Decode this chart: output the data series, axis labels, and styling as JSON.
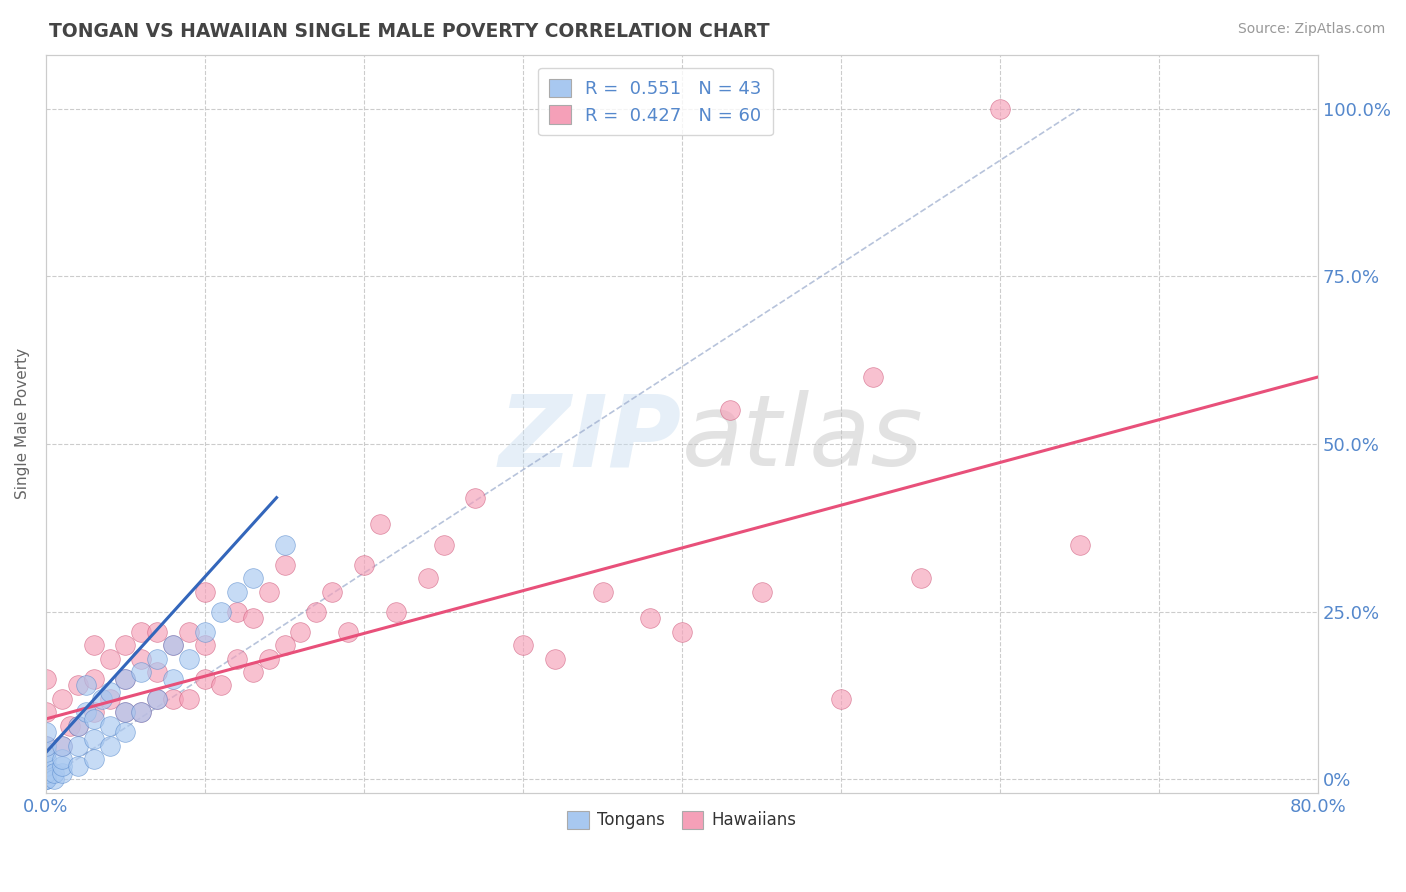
{
  "title": "TONGAN VS HAWAIIAN SINGLE MALE POVERTY CORRELATION CHART",
  "source": "Source: ZipAtlas.com",
  "ylabel": "Single Male Poverty",
  "xlim": [
    0.0,
    0.8
  ],
  "ylim": [
    -0.02,
    1.08
  ],
  "tongan_R": 0.551,
  "tongan_N": 43,
  "hawaiian_R": 0.427,
  "hawaiian_N": 60,
  "tongan_color": "#a8c8f0",
  "tongan_edge": "#5588cc",
  "hawaiian_color": "#f5a0b8",
  "hawaiian_edge": "#cc5577",
  "background_color": "#ffffff",
  "grid_color": "#cccccc",
  "title_color": "#444444",
  "tongan_scatter_x": [
    0.0,
    0.0,
    0.0,
    0.0,
    0.0,
    0.0,
    0.0,
    0.0,
    0.0,
    0.0,
    0.005,
    0.005,
    0.01,
    0.01,
    0.01,
    0.01,
    0.02,
    0.02,
    0.02,
    0.025,
    0.025,
    0.03,
    0.03,
    0.03,
    0.035,
    0.04,
    0.04,
    0.04,
    0.05,
    0.05,
    0.05,
    0.06,
    0.06,
    0.07,
    0.07,
    0.08,
    0.08,
    0.09,
    0.1,
    0.11,
    0.12,
    0.13,
    0.15
  ],
  "tongan_scatter_y": [
    0.0,
    0.0,
    0.0,
    0.01,
    0.01,
    0.02,
    0.03,
    0.04,
    0.05,
    0.07,
    0.0,
    0.01,
    0.01,
    0.02,
    0.03,
    0.05,
    0.02,
    0.05,
    0.08,
    0.1,
    0.14,
    0.03,
    0.06,
    0.09,
    0.12,
    0.05,
    0.08,
    0.13,
    0.07,
    0.1,
    0.15,
    0.1,
    0.16,
    0.12,
    0.18,
    0.15,
    0.2,
    0.18,
    0.22,
    0.25,
    0.28,
    0.3,
    0.35
  ],
  "hawaiian_scatter_x": [
    0.0,
    0.0,
    0.0,
    0.01,
    0.01,
    0.015,
    0.02,
    0.02,
    0.03,
    0.03,
    0.03,
    0.04,
    0.04,
    0.05,
    0.05,
    0.05,
    0.06,
    0.06,
    0.06,
    0.07,
    0.07,
    0.07,
    0.08,
    0.08,
    0.09,
    0.09,
    0.1,
    0.1,
    0.1,
    0.11,
    0.12,
    0.12,
    0.13,
    0.13,
    0.14,
    0.14,
    0.15,
    0.15,
    0.16,
    0.17,
    0.18,
    0.19,
    0.2,
    0.21,
    0.22,
    0.24,
    0.25,
    0.27,
    0.3,
    0.32,
    0.35,
    0.38,
    0.4,
    0.43,
    0.45,
    0.5,
    0.52,
    0.55,
    0.6,
    0.65
  ],
  "hawaiian_scatter_y": [
    0.05,
    0.1,
    0.15,
    0.05,
    0.12,
    0.08,
    0.08,
    0.14,
    0.1,
    0.15,
    0.2,
    0.12,
    0.18,
    0.1,
    0.15,
    0.2,
    0.1,
    0.18,
    0.22,
    0.12,
    0.16,
    0.22,
    0.12,
    0.2,
    0.12,
    0.22,
    0.15,
    0.2,
    0.28,
    0.14,
    0.18,
    0.25,
    0.16,
    0.24,
    0.18,
    0.28,
    0.2,
    0.32,
    0.22,
    0.25,
    0.28,
    0.22,
    0.32,
    0.38,
    0.25,
    0.3,
    0.35,
    0.42,
    0.2,
    0.18,
    0.28,
    0.24,
    0.22,
    0.55,
    0.28,
    0.12,
    0.6,
    0.3,
    1.0,
    0.35
  ],
  "ref_line_x": [
    0.0,
    0.65
  ],
  "ref_line_y": [
    0.0,
    1.0
  ],
  "haw_trend_x": [
    0.0,
    0.8
  ],
  "haw_trend_y": [
    0.09,
    0.6
  ],
  "ton_trend_x": [
    0.0,
    0.145
  ],
  "ton_trend_y": [
    0.04,
    0.42
  ]
}
